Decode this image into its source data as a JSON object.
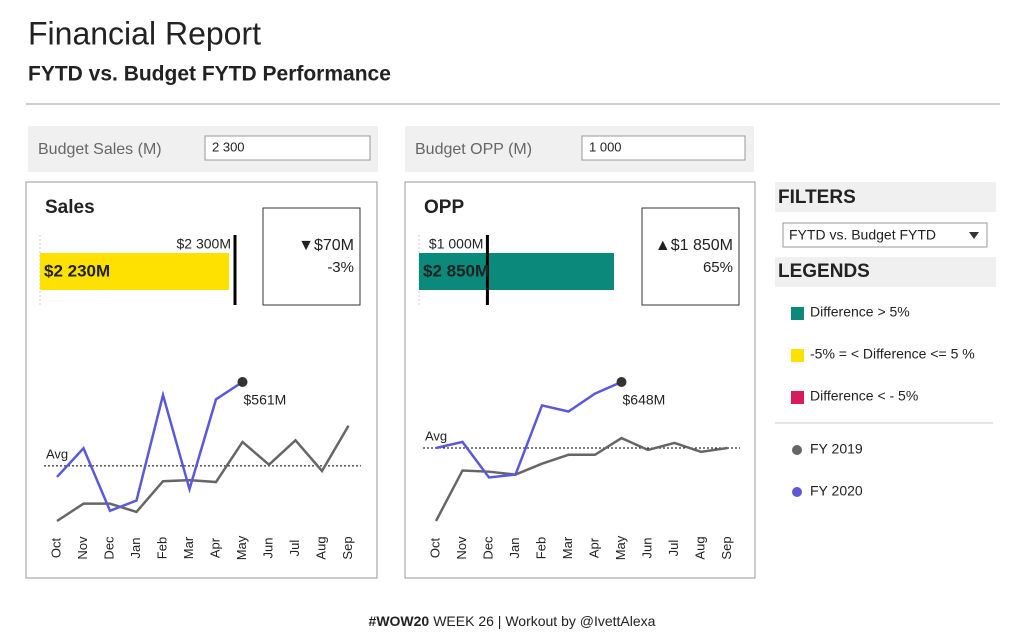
{
  "header": {
    "title": "Financial Report",
    "subtitle": "FYTD vs. Budget FYTD Performance"
  },
  "parameters": [
    {
      "label": "Budget Sales (M)",
      "value": "2 300"
    },
    {
      "label": "Budget OPP (M)",
      "value": "1 000"
    }
  ],
  "filters": {
    "title": "FILTERS",
    "selected": "FYTD vs. Budget FYTD"
  },
  "legends": {
    "title": "LEGENDS",
    "colors": [
      {
        "label": "Difference > 5%",
        "color": "#0b8a7b"
      },
      {
        "label": "-5% = < Difference <= 5 %",
        "color": "#ffe100"
      },
      {
        "label": "Difference < - 5%",
        "color": "#d81b5c"
      }
    ],
    "lines": [
      {
        "label": "FY 2019",
        "color": "#666666"
      },
      {
        "label": "FY 2020",
        "color": "#5b59d9"
      }
    ]
  },
  "chart_data": [
    {
      "type": "bullet",
      "title": "Sales",
      "value": 2230,
      "value_label": "$2 230M",
      "target": 2300,
      "target_label": "$2 300M",
      "color": "#ffe100",
      "difference_label": "▼$70M",
      "percent_label": "-3%"
    },
    {
      "type": "line",
      "categories": [
        "Oct",
        "Nov",
        "Dec",
        "Jan",
        "Feb",
        "Mar",
        "Apr",
        "May",
        "Jun",
        "Jul",
        "Aug",
        "Sep"
      ],
      "avg": 266,
      "avg_label": "Avg",
      "series": [
        {
          "name": "FY 2019",
          "color": "#666666",
          "values": [
            72,
            133,
            133,
            104,
            212,
            216,
            209,
            350,
            270,
            356,
            248,
            407
          ]
        },
        {
          "name": "FY 2020",
          "color": "#5b59d9",
          "values": [
            227,
            328,
            108,
            144,
            515,
            184,
            500,
            561,
            null,
            null,
            null,
            null
          ],
          "value_labels": [
            null,
            null,
            null,
            null,
            null,
            null,
            null,
            "$561M",
            null,
            null,
            null,
            null
          ]
        }
      ]
    },
    {
      "type": "bullet",
      "title": "OPP",
      "value": 2850,
      "value_label": "$2 850M",
      "target": 1000,
      "target_label": "$1 000M",
      "color": "#0b8a7b",
      "difference_label": "▲$1 850M",
      "percent_label": "65%"
    },
    {
      "type": "line",
      "categories": [
        "Oct",
        "Nov",
        "Dec",
        "Jan",
        "Feb",
        "Mar",
        "Apr",
        "May",
        "Jun",
        "Jul",
        "Aug",
        "Sep"
      ],
      "avg": 375,
      "avg_label": "Avg",
      "series": [
        {
          "name": "FY 2019",
          "color": "#666666",
          "values": [
            73,
            282,
            277,
            265,
            310,
            347,
            347,
            416,
            367,
            396,
            359,
            375
          ]
        },
        {
          "name": "FY 2020",
          "color": "#5b59d9",
          "values": [
            375,
            400,
            253,
            265,
            551,
            526,
            600,
            648,
            null,
            null,
            null,
            null
          ],
          "value_labels": [
            null,
            null,
            null,
            null,
            null,
            null,
            null,
            "$648M",
            null,
            null,
            null,
            null
          ]
        }
      ]
    }
  ],
  "footer": {
    "tag": "#WOW20",
    "text": "WEEK 26 | Workout by @IvettAlexa"
  }
}
